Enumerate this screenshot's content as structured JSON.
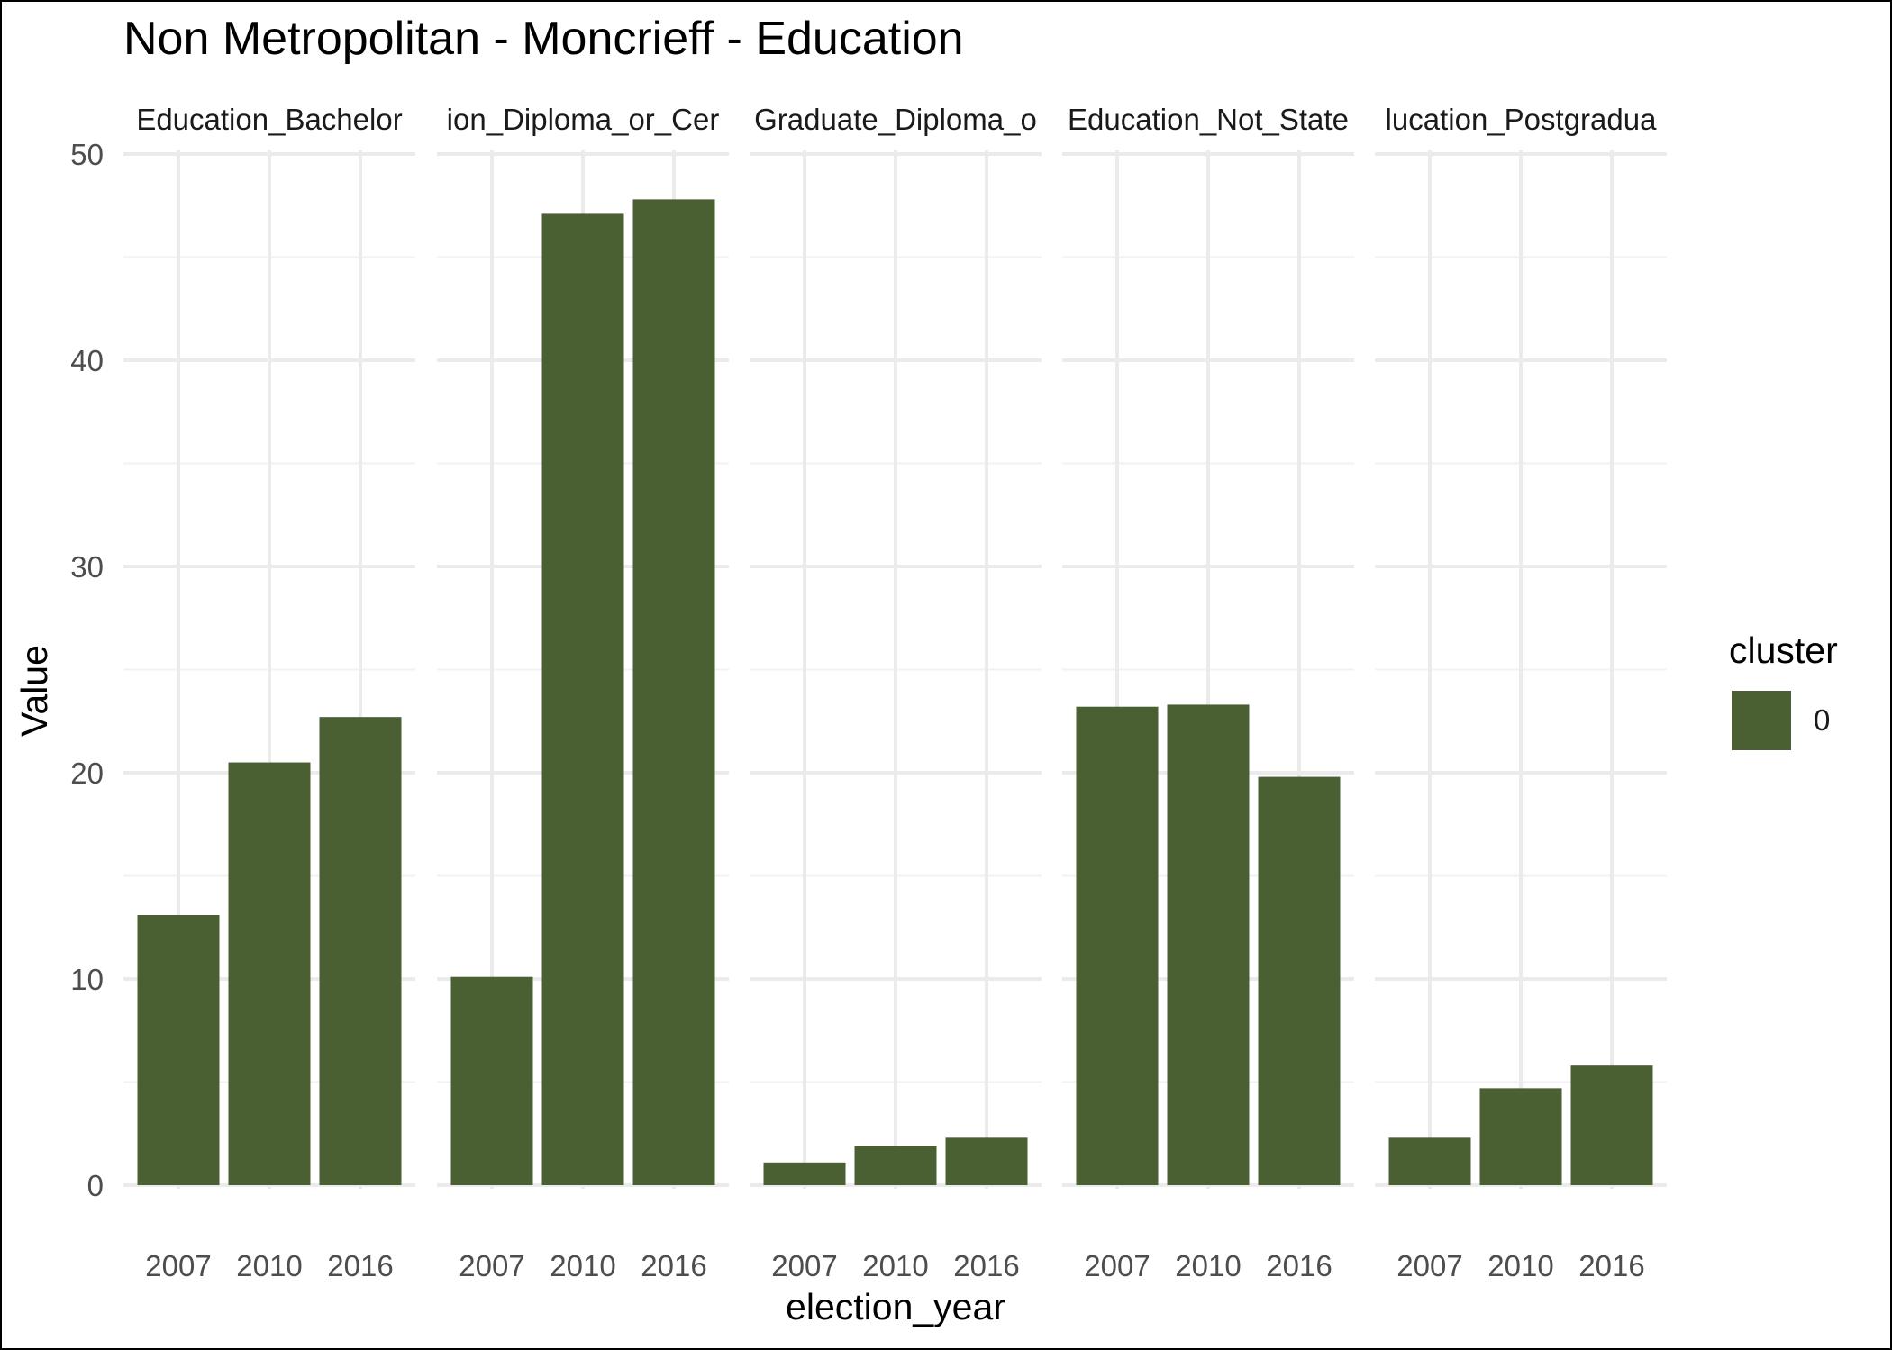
{
  "chart_data": {
    "type": "bar",
    "title": "Non Metropolitan - Moncrieff - Education",
    "xlabel": "election_year",
    "ylabel": "Value",
    "ylim": [
      0,
      50
    ],
    "yticks": [
      0,
      10,
      20,
      30,
      40,
      50
    ],
    "categories": [
      "2007",
      "2010",
      "2016"
    ],
    "grid": true,
    "bar_color": "#4a5f32",
    "legend": {
      "title": "cluster",
      "placement": "right",
      "entries": [
        {
          "label": "0",
          "color": "#4a5f32"
        }
      ]
    },
    "facets": [
      {
        "label": "Education_Bachelor",
        "values": [
          13.1,
          20.5,
          22.7
        ]
      },
      {
        "label": "ion_Diploma_or_Cer",
        "values": [
          10.1,
          47.1,
          47.8
        ]
      },
      {
        "label": "Graduate_Diploma_o",
        "values": [
          1.1,
          1.9,
          2.3
        ]
      },
      {
        "label": "Education_Not_State",
        "values": [
          23.2,
          23.3,
          19.8
        ]
      },
      {
        "label": "lucation_Postgradua",
        "values": [
          2.3,
          4.7,
          5.8
        ]
      }
    ]
  }
}
